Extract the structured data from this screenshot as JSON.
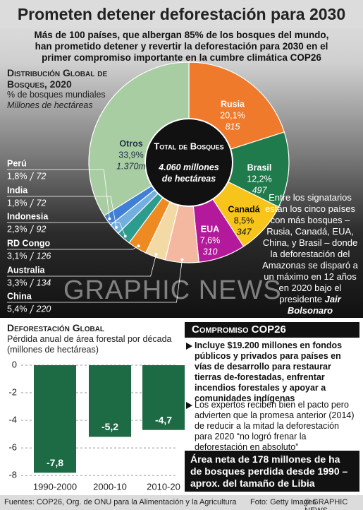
{
  "header": {
    "title": "Prometen detener deforestación para 2030",
    "subtitle": "Más de 100 países, que albergan 85% de los bosques del mundo, han prometido detener y revertir la deforestación para 2030 en el primer compromiso importante en la cumbre climática COP26"
  },
  "chart_data": [
    {
      "type": "donut",
      "title": "Distribución Global de Bosques, 2020",
      "subtitle": [
        "% de bosques mundiales",
        "Millones de hectáreas"
      ],
      "center_title": "Total de Bosques",
      "center_value": "4.060 millones de hectáreas",
      "categories": [
        "Rusia",
        "Brasil",
        "Canadá",
        "EUA",
        "China",
        "Australia",
        "RD Congo",
        "Indonesia",
        "India",
        "Perú",
        "Otros"
      ],
      "values": [
        20.1,
        12.2,
        8.5,
        7.6,
        5.4,
        3.3,
        3.1,
        2.3,
        1.8,
        1.8,
        33.9
      ],
      "value_labels": [
        "20,1%",
        "12,2%",
        "8,5%",
        "7,6%",
        "5,4%",
        "3,3%",
        "3,1%",
        "2,3%",
        "1,8%",
        "1,8%",
        "33,9%"
      ],
      "hectares": [
        815,
        497,
        347,
        310,
        220,
        134,
        126,
        92,
        72,
        72,
        1370
      ],
      "hectare_labels": [
        "815",
        "497",
        "347",
        "310",
        "220",
        "134",
        "126",
        "92",
        "72",
        "72",
        "1.370m"
      ],
      "colors": [
        "#ef7a2b",
        "#1f7a4c",
        "#f6c41a",
        "#b3199a",
        "#f4b7a0",
        "#f3d9a4",
        "#ee8a22",
        "#2c9c8e",
        "#73aee0",
        "#3f7fd6",
        "#a9cda2"
      ]
    },
    {
      "type": "bar",
      "title": "Deforestación Global",
      "subtitle": "Pérdida anual de área forestal por década (millones de hectáreas)",
      "categories": [
        "1990-2000",
        "2000-10",
        "2010-20"
      ],
      "values": [
        -7.8,
        -5.2,
        -4.7
      ],
      "value_labels": [
        "-7,8",
        "-5,2",
        "-4,7"
      ],
      "color": "#1c6b45",
      "ylim": [
        -8.2,
        0
      ],
      "yticks": [
        0,
        -2,
        -4,
        -6,
        -8
      ],
      "grid": true
    }
  ],
  "side_note": {
    "text": "Entre los signatarios están los cinco países con más bosques – Rusia, Canadá, EUA, China, y Brasil – donde la deforestación del Amazonas se disparó a un máximo en 12 años en 2020 bajo el presidente",
    "emphasis": "Jair Bolsonaro"
  },
  "pledge": {
    "title": "Compromiso COP26",
    "bullets": [
      "Incluye $19.200 millones en fondos públicos y privados para países en vías de desarrollo para restaurar tierras de-forestadas, enfrentar incendios forestales y apoyar a comunidades indígenas",
      "Los expertos reciben bien el pacto pero advierten que la promesa anterior (2014) de reducir a la mitad la deforestación para 2020 “no logró frenar la deforestación en absoluto”"
    ],
    "highlight": "Área neta de 178 millones de ha de bosques perdida desde 1990 – aprox. del tamaño de Libia"
  },
  "watermark": "GRAPHIC NEWS",
  "footer": {
    "sources": "Fuentes: COP26, Org. de ONU para la Alimentación y la Agricultura",
    "photo": "Foto: Getty Images",
    "credit": "© GRAPHIC NEWS"
  }
}
